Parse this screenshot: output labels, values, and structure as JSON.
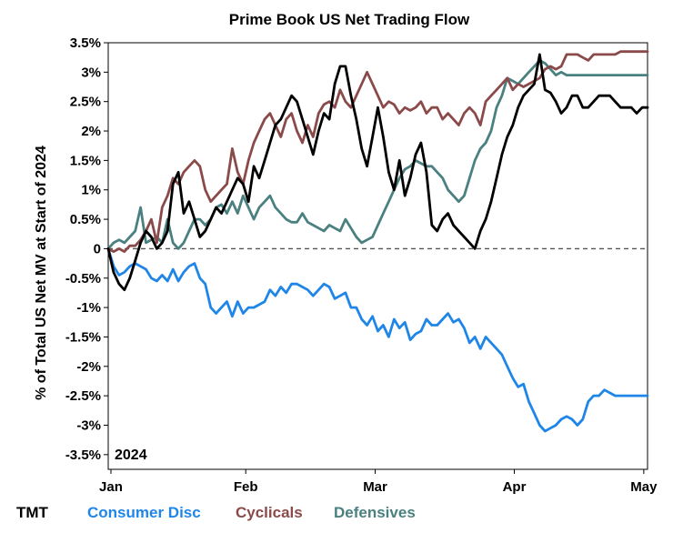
{
  "chart_data": {
    "type": "line",
    "title": "Prime Book US Net Trading Flow",
    "ylabel": "% of Total US Net MV at Start of 2024",
    "xlabel": "",
    "annotation": "2024",
    "ylim": [
      -3.75,
      3.5
    ],
    "xlim": [
      0,
      100
    ],
    "y_ticks": [
      3.5,
      3,
      2.5,
      2,
      1.5,
      1,
      0.5,
      0,
      -0.5,
      -1,
      -1.5,
      -2,
      -2.5,
      -3,
      -3.5
    ],
    "y_tick_labels": [
      "3.5%",
      "3%",
      "2.5%",
      "2%",
      "1.5%",
      "1%",
      "0.5%",
      "0",
      "-0.5%",
      "-1%",
      "-1.5%",
      "-2%",
      "-2.5%",
      "-3%",
      "-3.5%"
    ],
    "x_ticks": [
      {
        "x": 0.5,
        "label": "Jan"
      },
      {
        "x": 25.5,
        "label": "Feb"
      },
      {
        "x": 49.5,
        "label": "Mar"
      },
      {
        "x": 75.3,
        "label": "Apr"
      },
      {
        "x": 99.3,
        "label": "May"
      }
    ],
    "zero_line": true,
    "series": [
      {
        "name": "TMT",
        "color": "#000000",
        "x": [
          0,
          1,
          2,
          3,
          4,
          5,
          6,
          7,
          8,
          9,
          10,
          11,
          12,
          13,
          14,
          15,
          16,
          17,
          18,
          19,
          20,
          21,
          22,
          23,
          24,
          25,
          26,
          27,
          28,
          29,
          30,
          31,
          32,
          33,
          34,
          35,
          36,
          37,
          38,
          39,
          40,
          41,
          42,
          43,
          44,
          45,
          46,
          47,
          48,
          49,
          50,
          51,
          52,
          53,
          54,
          55,
          56,
          57,
          58,
          59,
          60,
          61,
          62,
          63,
          64,
          65,
          66,
          67,
          68,
          69,
          70,
          71,
          72,
          73,
          74,
          75,
          76,
          77,
          78,
          79,
          80,
          81,
          82,
          83,
          84,
          85,
          86,
          87,
          88,
          89,
          90,
          91,
          92,
          93,
          94,
          95,
          96,
          97,
          98,
          99,
          100
        ],
        "values": [
          0.0,
          -0.4,
          -0.6,
          -0.7,
          -0.5,
          -0.2,
          0.1,
          0.3,
          0.2,
          0.0,
          0.1,
          0.3,
          1.1,
          1.3,
          0.6,
          0.8,
          0.5,
          0.2,
          0.3,
          0.5,
          0.7,
          0.6,
          0.8,
          1.0,
          1.2,
          1.1,
          0.8,
          1.4,
          1.2,
          1.5,
          1.8,
          2.1,
          2.2,
          2.4,
          2.6,
          2.5,
          2.2,
          1.9,
          1.6,
          2.0,
          2.3,
          2.2,
          2.8,
          3.1,
          3.1,
          2.6,
          2.2,
          1.7,
          1.4,
          1.9,
          2.4,
          1.9,
          1.3,
          1.0,
          1.5,
          0.9,
          1.2,
          1.6,
          1.8,
          1.3,
          0.4,
          0.3,
          0.5,
          0.6,
          0.4,
          0.3,
          0.2,
          0.1,
          0.0,
          0.3,
          0.5,
          0.8,
          1.2,
          1.6,
          1.9,
          2.1,
          2.4,
          2.6,
          2.7,
          2.8,
          3.3,
          2.7,
          2.65,
          2.5,
          2.3,
          2.4,
          2.6,
          2.6,
          2.4,
          2.4,
          2.5,
          2.6,
          2.6,
          2.6,
          2.5,
          2.4,
          2.4,
          2.4,
          2.3,
          2.4,
          2.4
        ]
      },
      {
        "name": "Consumer Disc",
        "color": "#1f86e8",
        "x": [
          0,
          1,
          2,
          3,
          4,
          5,
          6,
          7,
          8,
          9,
          10,
          11,
          12,
          13,
          14,
          15,
          16,
          17,
          18,
          19,
          20,
          21,
          22,
          23,
          24,
          25,
          26,
          27,
          28,
          29,
          30,
          31,
          32,
          33,
          34,
          35,
          36,
          37,
          38,
          39,
          40,
          41,
          42,
          43,
          44,
          45,
          46,
          47,
          48,
          49,
          50,
          51,
          52,
          53,
          54,
          55,
          56,
          57,
          58,
          59,
          60,
          61,
          62,
          63,
          64,
          65,
          66,
          67,
          68,
          69,
          70,
          71,
          72,
          73,
          74,
          75,
          76,
          77,
          78,
          79,
          80,
          81,
          82,
          83,
          84,
          85,
          86,
          87,
          88,
          89,
          90,
          91,
          92,
          93,
          94,
          95,
          96,
          97,
          98,
          99,
          100
        ],
        "values": [
          0.0,
          -0.3,
          -0.45,
          -0.4,
          -0.3,
          -0.25,
          -0.3,
          -0.35,
          -0.5,
          -0.55,
          -0.45,
          -0.55,
          -0.35,
          -0.55,
          -0.4,
          -0.3,
          -0.25,
          -0.5,
          -0.6,
          -1.0,
          -1.1,
          -1.0,
          -0.9,
          -1.15,
          -0.9,
          -1.1,
          -1.0,
          -1.0,
          -0.95,
          -0.9,
          -0.7,
          -0.8,
          -0.65,
          -0.75,
          -0.6,
          -0.6,
          -0.65,
          -0.7,
          -0.8,
          -0.7,
          -0.6,
          -0.65,
          -0.85,
          -0.8,
          -0.75,
          -1.0,
          -1.0,
          -1.2,
          -1.3,
          -1.15,
          -1.4,
          -1.3,
          -1.5,
          -1.2,
          -1.35,
          -1.25,
          -1.55,
          -1.45,
          -1.4,
          -1.2,
          -1.3,
          -1.3,
          -1.2,
          -1.1,
          -1.25,
          -1.2,
          -1.35,
          -1.6,
          -1.5,
          -1.7,
          -1.5,
          -1.6,
          -1.7,
          -1.8,
          -2.0,
          -2.2,
          -2.35,
          -2.3,
          -2.6,
          -2.8,
          -3.0,
          -3.1,
          -3.05,
          -3.0,
          -2.9,
          -2.85,
          -2.9,
          -3.0,
          -2.9,
          -2.6,
          -2.5,
          -2.5,
          -2.4,
          -2.45,
          -2.5,
          -2.5,
          -2.5,
          -2.5,
          -2.5,
          -2.5,
          -2.5
        ]
      },
      {
        "name": "Cyclicals",
        "color": "#8b4a4a",
        "x": [
          0,
          1,
          2,
          3,
          4,
          5,
          6,
          7,
          8,
          9,
          10,
          11,
          12,
          13,
          14,
          15,
          16,
          17,
          18,
          19,
          20,
          21,
          22,
          23,
          24,
          25,
          26,
          27,
          28,
          29,
          30,
          31,
          32,
          33,
          34,
          35,
          36,
          37,
          38,
          39,
          40,
          41,
          42,
          43,
          44,
          45,
          46,
          47,
          48,
          49,
          50,
          51,
          52,
          53,
          54,
          55,
          56,
          57,
          58,
          59,
          60,
          61,
          62,
          63,
          64,
          65,
          66,
          67,
          68,
          69,
          70,
          71,
          72,
          73,
          74,
          75,
          76,
          77,
          78,
          79,
          80,
          81,
          82,
          83,
          84,
          85,
          86,
          87,
          88,
          89,
          90,
          91,
          92,
          93,
          94,
          95,
          96,
          97,
          98,
          99,
          100
        ],
        "values": [
          0.0,
          -0.05,
          0.0,
          -0.05,
          0.05,
          0.05,
          0.15,
          0.3,
          0.5,
          0.1,
          0.7,
          0.9,
          1.2,
          1.1,
          1.3,
          1.4,
          1.5,
          1.4,
          1.0,
          0.8,
          0.9,
          1.0,
          1.1,
          1.7,
          1.3,
          1.1,
          1.5,
          1.8,
          2.0,
          2.2,
          2.3,
          2.1,
          1.9,
          2.2,
          2.3,
          2.0,
          1.8,
          2.1,
          1.9,
          2.3,
          2.45,
          2.5,
          2.4,
          2.7,
          2.5,
          2.4,
          2.6,
          2.8,
          3.0,
          2.8,
          2.6,
          2.4,
          2.5,
          2.45,
          2.3,
          2.4,
          2.35,
          2.4,
          2.5,
          2.3,
          2.4,
          2.4,
          2.2,
          2.3,
          2.2,
          2.1,
          2.3,
          2.4,
          2.3,
          2.1,
          2.5,
          2.6,
          2.7,
          2.8,
          2.9,
          2.7,
          2.8,
          2.75,
          2.8,
          2.85,
          2.9,
          3.05,
          3.1,
          3.05,
          3.1,
          3.3,
          3.3,
          3.3,
          3.25,
          3.2,
          3.3,
          3.3,
          3.3,
          3.3,
          3.3,
          3.35,
          3.35,
          3.35,
          3.35,
          3.35,
          3.35
        ]
      },
      {
        "name": "Defensives",
        "color": "#4a8080",
        "x": [
          0,
          1,
          2,
          3,
          4,
          5,
          6,
          7,
          8,
          9,
          10,
          11,
          12,
          13,
          14,
          15,
          16,
          17,
          18,
          19,
          20,
          21,
          22,
          23,
          24,
          25,
          26,
          27,
          28,
          29,
          30,
          31,
          32,
          33,
          34,
          35,
          36,
          37,
          38,
          39,
          40,
          41,
          42,
          43,
          44,
          45,
          46,
          47,
          48,
          49,
          50,
          51,
          52,
          53,
          54,
          55,
          56,
          57,
          58,
          59,
          60,
          61,
          62,
          63,
          64,
          65,
          66,
          67,
          68,
          69,
          70,
          71,
          72,
          73,
          74,
          75,
          76,
          77,
          78,
          79,
          80,
          81,
          82,
          83,
          84,
          85,
          86,
          87,
          88,
          89,
          90,
          91,
          92,
          93,
          94,
          95,
          96,
          97,
          98,
          99,
          100
        ],
        "values": [
          0.0,
          0.1,
          0.15,
          0.1,
          0.2,
          0.3,
          0.7,
          0.1,
          0.15,
          0.2,
          0.1,
          0.5,
          0.1,
          0.0,
          0.1,
          0.3,
          0.5,
          0.5,
          0.4,
          0.5,
          0.7,
          0.75,
          0.6,
          0.8,
          0.6,
          0.9,
          0.7,
          0.5,
          0.7,
          0.8,
          0.9,
          0.7,
          0.6,
          0.5,
          0.45,
          0.45,
          0.6,
          0.45,
          0.4,
          0.35,
          0.3,
          0.4,
          0.35,
          0.3,
          0.5,
          0.35,
          0.2,
          0.1,
          0.15,
          0.2,
          0.4,
          0.6,
          0.8,
          1.0,
          1.2,
          1.35,
          1.4,
          1.5,
          1.45,
          1.4,
          1.4,
          1.3,
          1.2,
          1.0,
          0.9,
          0.8,
          0.9,
          1.2,
          1.5,
          1.7,
          1.8,
          2.0,
          2.4,
          2.6,
          2.9,
          2.85,
          2.8,
          2.9,
          3.0,
          3.1,
          3.2,
          3.15,
          3.05,
          2.95,
          3.0,
          2.95,
          2.95,
          2.95,
          2.95,
          2.95,
          2.95,
          2.95,
          2.95,
          2.95,
          2.95,
          2.95,
          2.95,
          2.95,
          2.95,
          2.95,
          2.95
        ]
      }
    ]
  },
  "legend": [
    {
      "label": "TMT",
      "color": "#000000"
    },
    {
      "label": "Consumer Disc",
      "color": "#1f86e8"
    },
    {
      "label": "Cyclicals",
      "color": "#8b4a4a"
    },
    {
      "label": "Defensives",
      "color": "#4a8080"
    }
  ]
}
